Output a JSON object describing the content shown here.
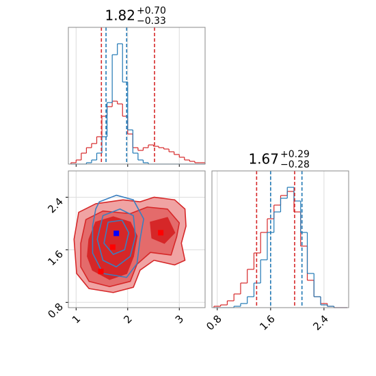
{
  "chart_data": [
    {
      "type": "histogram",
      "title": {
        "value": "1.82",
        "plus": "+0.70",
        "minus": "−0.33"
      },
      "xlim": [
        0.85,
        3.5
      ],
      "xticks": [
        1,
        2,
        3
      ],
      "xticklabels": false,
      "ylim": [
        0,
        100
      ],
      "grid": true,
      "bins": [
        0.9,
        1.0,
        1.1,
        1.2,
        1.3,
        1.4,
        1.5,
        1.6,
        1.7,
        1.8,
        1.9,
        2.0,
        2.1,
        2.2,
        2.3,
        2.4,
        2.5,
        2.6,
        2.7,
        2.8,
        2.9,
        3.0,
        3.1,
        3.2,
        3.3,
        3.4,
        3.5
      ],
      "series": [
        {
          "color": "#d62728",
          "values": [
            1,
            3,
            8,
            12,
            15,
            20,
            35,
            42,
            46,
            44,
            35,
            22,
            12,
            10,
            12,
            14,
            13,
            12,
            11,
            9,
            7,
            5,
            3,
            2,
            1,
            1
          ]
        },
        {
          "color": "#1f77b4",
          "values": [
            0,
            0,
            0,
            1,
            3,
            8,
            20,
            45,
            80,
            88,
            60,
            25,
            8,
            3,
            1,
            0,
            0,
            0,
            0,
            0,
            0,
            0,
            0,
            0,
            0,
            0
          ]
        }
      ],
      "vlines": [
        {
          "value": 1.49,
          "color": "#d62728"
        },
        {
          "value": 2.52,
          "color": "#d62728"
        },
        {
          "value": 1.58,
          "color": "#1f77b4"
        },
        {
          "value": 1.98,
          "color": "#1f77b4"
        }
      ]
    },
    {
      "type": "contour",
      "xlim": [
        0.85,
        3.5
      ],
      "xticks": [
        1,
        2,
        3
      ],
      "ylim": [
        0.72,
        2.8
      ],
      "yticks": [
        0.8,
        1.6,
        2.4
      ],
      "grid": true,
      "series": [
        {
          "color": "#d62728",
          "filled": true,
          "fills": [
            "#f0a3a3",
            "#e46b6b",
            "#d62728"
          ],
          "levels": [
            [
              {
                "x": [
                  0.96,
                  1.05,
                  1.38,
                  1.91,
                  2.24,
                  2.51,
                  2.91,
                  3.11,
                  3.13,
                  3.04,
                  3.11,
                  2.91,
                  2.51,
                  2.24,
                  2.11,
                  1.72,
                  1.25,
                  1.01
                ],
                "y": [
                  1.76,
                  2.17,
                  2.3,
                  2.36,
                  2.33,
                  2.4,
                  2.36,
                  2.22,
                  1.96,
                  1.7,
                  1.44,
                  1.37,
                  1.44,
                  1.29,
                  1.03,
                  0.95,
                  1.01,
                  1.24
                ]
              }
            ],
            [
              {
                "x": [
                  1.09,
                  1.19,
                  1.52,
                  2.05,
                  2.38,
                  2.77,
                  3.0,
                  2.95,
                  2.84,
                  2.44,
                  2.18,
                  2.05,
                  1.65,
                  1.25,
                  1.09
                ],
                "y": [
                  1.7,
                  2.06,
                  2.19,
                  2.15,
                  2.25,
                  2.22,
                  2.01,
                  1.8,
                  1.52,
                  1.56,
                  1.38,
                  1.12,
                  1.04,
                  1.12,
                  1.34
                ]
              }
            ],
            [
              {
                "x": [
                  1.25,
                  1.38,
                  1.72,
                  2.05,
                  2.18,
                  2.11,
                  1.98,
                  1.65,
                  1.32,
                  1.22
                ],
                "y": [
                  1.76,
                  2.02,
                  2.1,
                  2.02,
                  1.81,
                  1.5,
                  1.24,
                  1.15,
                  1.29,
                  1.5
                ]
              },
              {
                "x": [
                  2.44,
                  2.77,
                  2.91,
                  2.71,
                  2.47
                ],
                "y": [
                  2.02,
                  2.09,
                  1.86,
                  1.7,
                  1.78
                ]
              }
            ]
          ]
        },
        {
          "color": "#3a7fc0",
          "filled": false,
          "levels": [
            [
              {
                "x": [
                  1.45,
                  1.78,
                  2.11,
                  2.31,
                  2.24,
                  2.18,
                  1.98,
                  1.52,
                  1.32,
                  1.32,
                  1.38
                ],
                "y": [
                  2.33,
                  2.43,
                  2.36,
                  2.07,
                  1.76,
                  1.39,
                  1.18,
                  1.24,
                  1.55,
                  1.96,
                  2.22
                ]
              }
            ],
            [
              {
                "x": [
                  1.52,
                  1.85,
                  2.11,
                  2.15,
                  2.05,
                  1.78,
                  1.52,
                  1.41
                ],
                "y": [
                  2.12,
                  2.22,
                  2.12,
                  1.81,
                  1.5,
                  1.34,
                  1.44,
                  1.76
                ]
              }
            ],
            [
              {
                "x": [
                  1.62,
                  1.89,
                  2.02,
                  1.94,
                  1.72,
                  1.54
                ],
                "y": [
                  2.02,
                  2.05,
                  1.86,
                  1.6,
                  1.53,
                  1.7
                ]
              }
            ]
          ]
        }
      ],
      "markers": [
        {
          "x": 1.48,
          "y": 1.27,
          "color": "#ff0000"
        },
        {
          "x": 1.71,
          "y": 1.64,
          "color": "#ff0000"
        },
        {
          "x": 2.64,
          "y": 1.86,
          "color": "#ff0000"
        },
        {
          "x": 1.78,
          "y": 1.85,
          "color": "#0000ff"
        }
      ]
    },
    {
      "type": "histogram",
      "title": {
        "value": "1.67",
        "plus": "+0.29",
        "minus": "−0.28"
      },
      "xlim": [
        0.72,
        2.77
      ],
      "xticks": [
        0.8,
        1.6,
        2.4
      ],
      "ylim": [
        0,
        100
      ],
      "grid": true,
      "bins": [
        0.75,
        0.85,
        0.95,
        1.05,
        1.15,
        1.25,
        1.35,
        1.45,
        1.55,
        1.65,
        1.75,
        1.85,
        1.95,
        2.05,
        2.15,
        2.25,
        2.35,
        2.45,
        2.55,
        2.65,
        2.75
      ],
      "series": [
        {
          "color": "#d62728",
          "values": [
            1,
            2,
            5,
            10,
            18,
            28,
            40,
            55,
            65,
            75,
            82,
            85,
            70,
            45,
            20,
            8,
            3,
            1,
            0,
            0
          ]
        },
        {
          "color": "#1f77b4",
          "values": [
            0,
            0,
            0,
            1,
            3,
            8,
            18,
            35,
            55,
            70,
            80,
            88,
            78,
            55,
            25,
            8,
            2,
            1,
            0,
            0
          ]
        }
      ],
      "vlines": [
        {
          "value": 1.39,
          "color": "#d62728"
        },
        {
          "value": 1.96,
          "color": "#d62728"
        },
        {
          "value": 1.6,
          "color": "#1f77b4"
        },
        {
          "value": 2.07,
          "color": "#1f77b4"
        }
      ]
    }
  ]
}
